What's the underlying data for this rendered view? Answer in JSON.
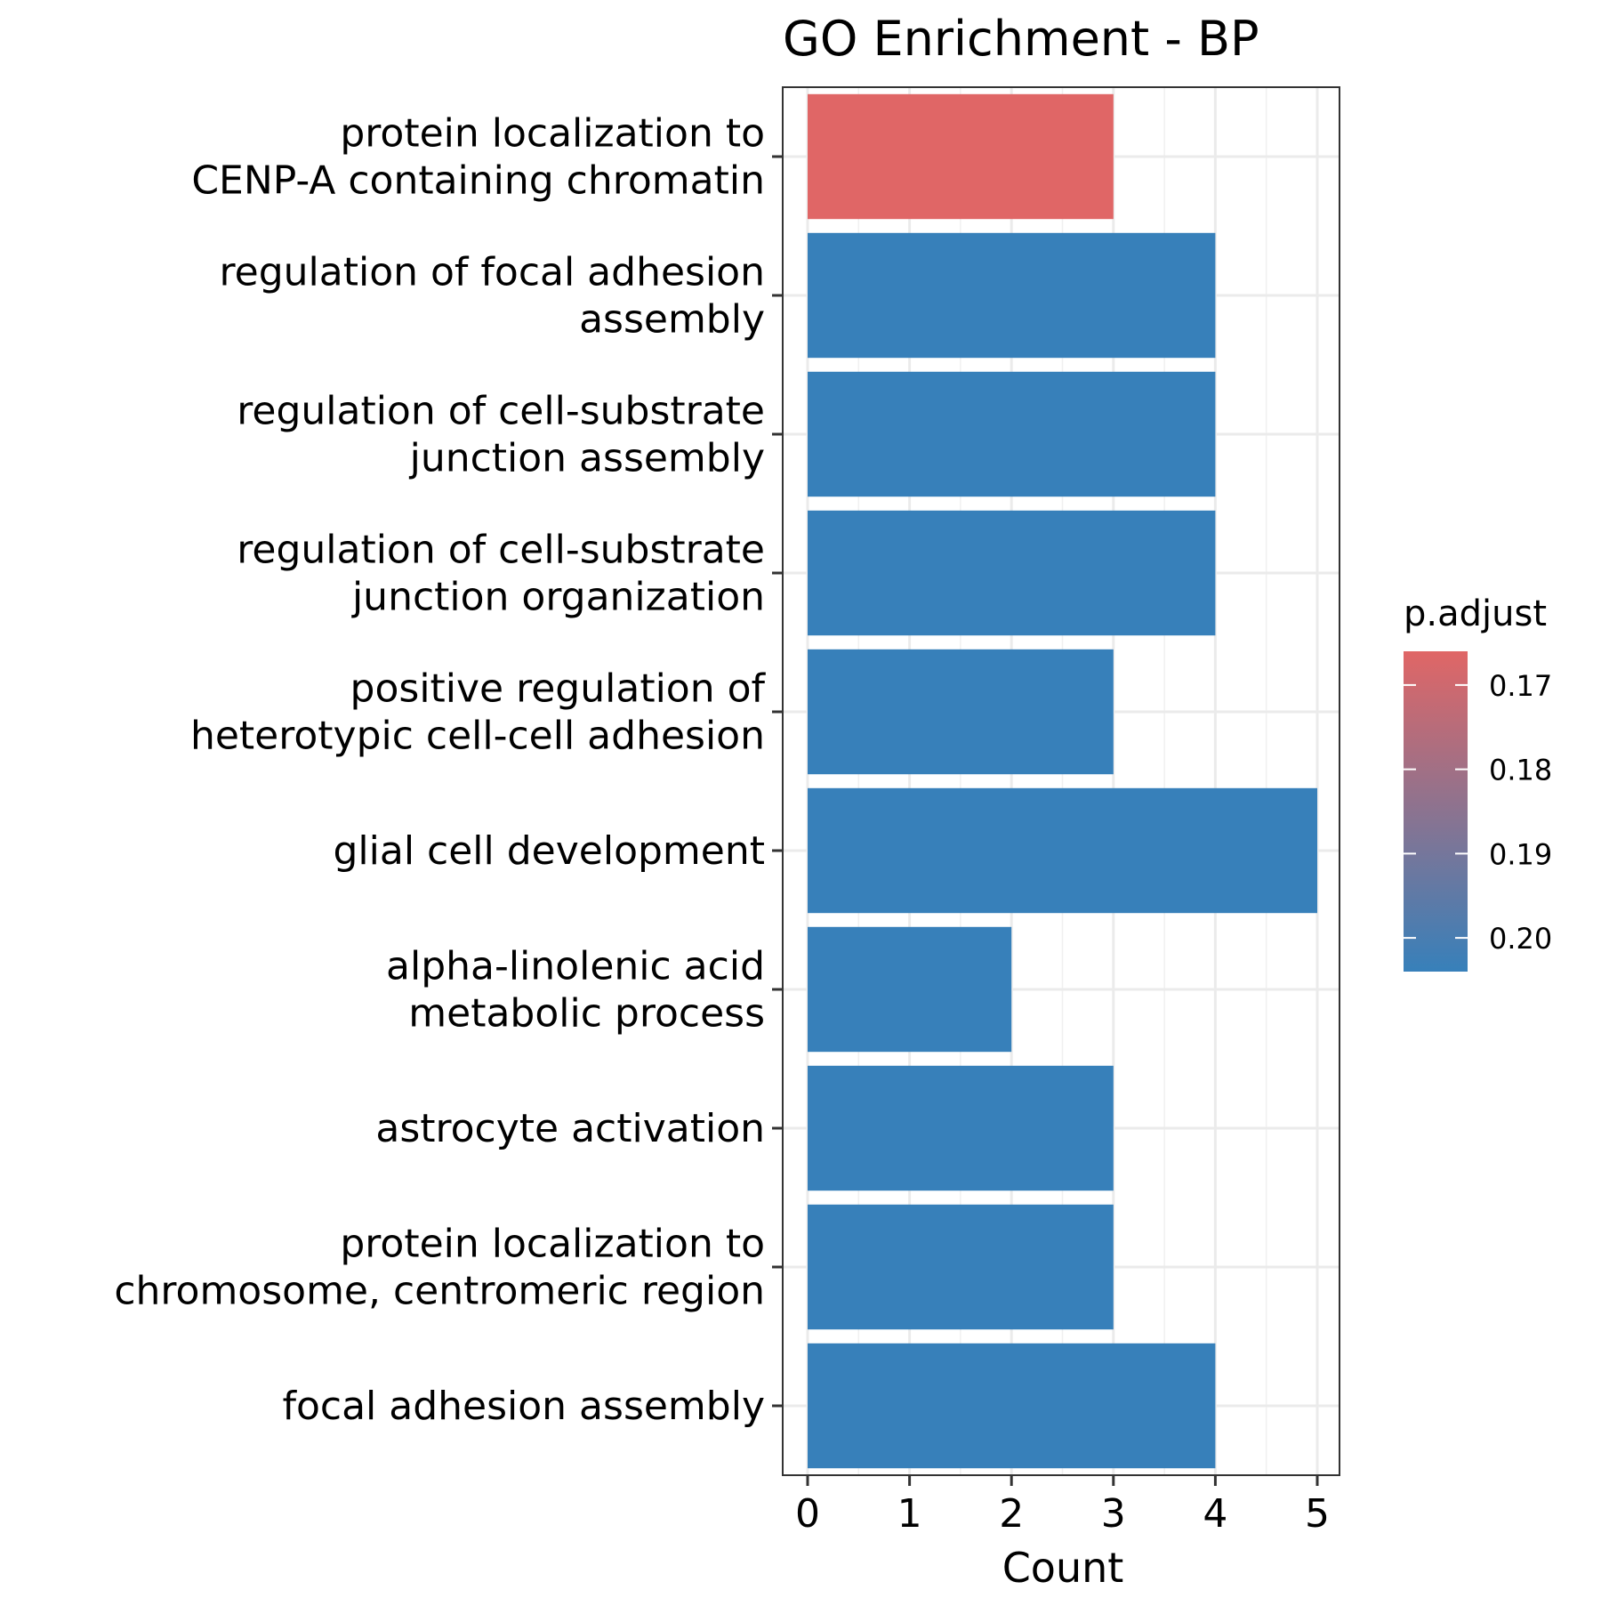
{
  "chart_data": {
    "type": "bar",
    "orientation": "horizontal",
    "title": "GO Enrichment - BP",
    "xlabel": "Count",
    "ylabel": "",
    "xlim": [
      0,
      5.24
    ],
    "xticks": [
      0,
      1,
      2,
      3,
      4,
      5
    ],
    "grid": true,
    "categories": [
      [
        "protein localization to",
        "CENP-A containing chromatin"
      ],
      [
        "regulation of focal adhesion",
        "assembly"
      ],
      [
        "regulation of cell-substrate",
        "junction assembly"
      ],
      [
        "regulation of cell-substrate",
        "junction organization"
      ],
      [
        "positive regulation of",
        "heterotypic cell-cell adhesion"
      ],
      [
        "glial cell development"
      ],
      [
        "alpha-linolenic acid",
        "metabolic process"
      ],
      [
        "astrocyte activation"
      ],
      [
        "protein localization to",
        "chromosome, centromeric region"
      ],
      [
        "focal adhesion assembly"
      ]
    ],
    "values": [
      3,
      4,
      4,
      4,
      3,
      5,
      2,
      3,
      3,
      4
    ],
    "p_adjust": [
      0.166,
      0.204,
      0.204,
      0.204,
      0.204,
      0.204,
      0.204,
      0.204,
      0.204,
      0.204
    ],
    "legend": {
      "title": "p.adjust",
      "placement": "right",
      "ticks": [
        "0.17",
        "0.18",
        "0.19",
        "0.20"
      ],
      "tick_values": [
        0.17,
        0.18,
        0.19,
        0.2
      ],
      "range": [
        0.166,
        0.204
      ],
      "color_low": "#E06666",
      "color_high": "#3780BA"
    }
  }
}
